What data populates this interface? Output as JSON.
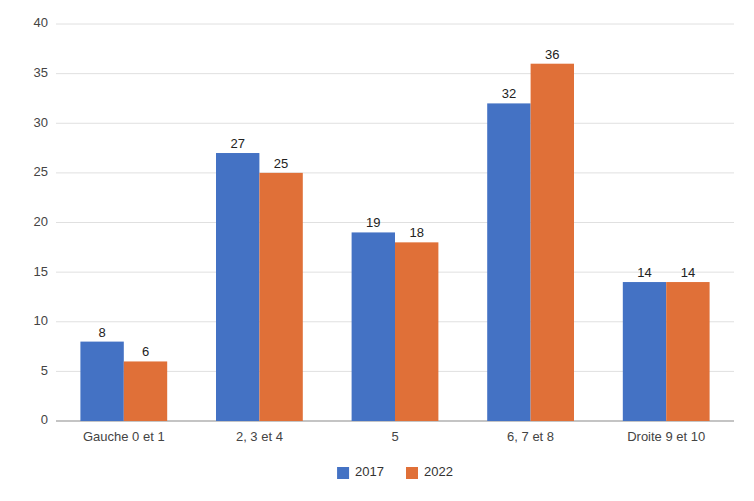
{
  "chart_data": {
    "type": "bar",
    "categories": [
      "Gauche 0 et 1",
      "2, 3 et 4",
      "5",
      "6, 7 et 8",
      "Droite 9 et 10"
    ],
    "series": [
      {
        "name": "2017",
        "color": "#4472C4",
        "values": [
          8,
          27,
          19,
          32,
          14
        ]
      },
      {
        "name": "2022",
        "color": "#E07038",
        "values": [
          6,
          25,
          18,
          36,
          14
        ]
      }
    ],
    "ylim": [
      0,
      40
    ],
    "yticks": [
      0,
      5,
      10,
      15,
      20,
      25,
      30,
      35,
      40
    ],
    "grid": true,
    "legend": "bottom",
    "data_labels": true
  }
}
